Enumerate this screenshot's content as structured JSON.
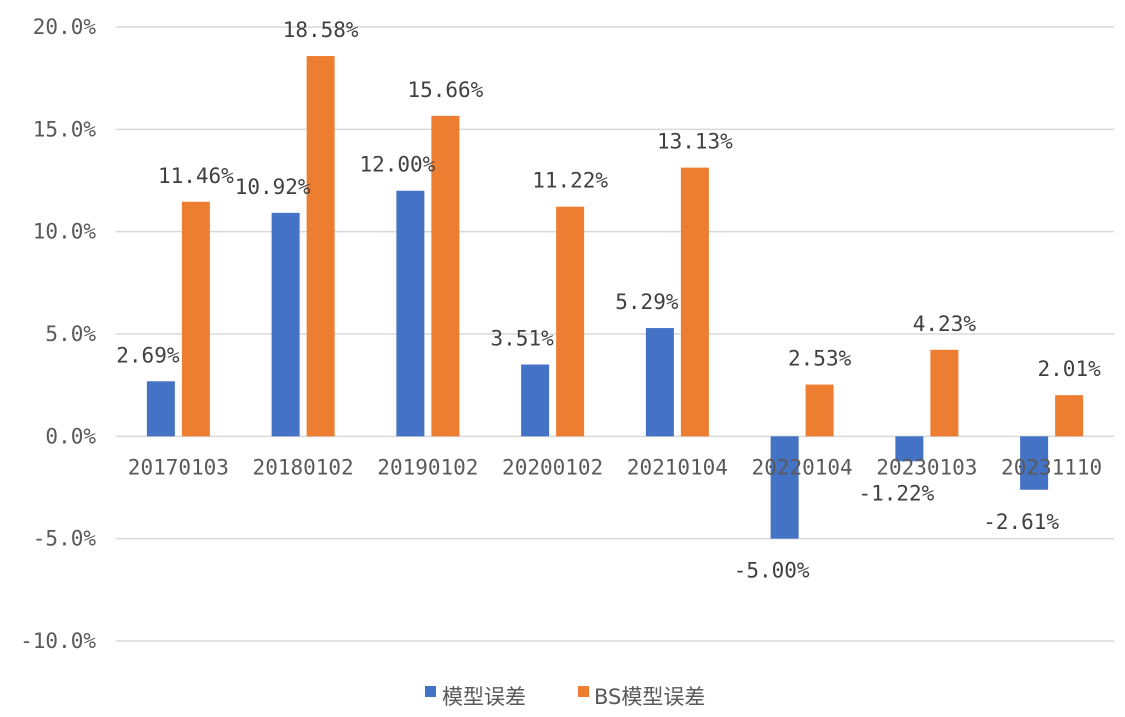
{
  "chart_data": {
    "type": "bar",
    "title": "",
    "xlabel": "",
    "ylabel": "",
    "categories": [
      "20170103",
      "20180102",
      "20190102",
      "20200102",
      "20210104",
      "20220104",
      "20230103",
      "20231110"
    ],
    "series": [
      {
        "name": "模型误差",
        "color": "#4472c4",
        "values": [
          2.69,
          10.92,
          12.0,
          3.51,
          5.29,
          -5.0,
          -1.22,
          -2.61
        ],
        "labels": [
          "2.69%",
          "10.92%",
          "12.00%",
          "3.51%",
          "5.29%",
          "-5.00%",
          "-1.22%",
          "-2.61%"
        ]
      },
      {
        "name": "BS模型误差",
        "color": "#ed7d31",
        "values": [
          11.46,
          18.58,
          15.66,
          11.22,
          13.13,
          2.53,
          4.23,
          2.01
        ],
        "labels": [
          "11.46%",
          "18.58%",
          "15.66%",
          "11.22%",
          "13.13%",
          "2.53%",
          "4.23%",
          "2.01%"
        ]
      }
    ],
    "ylim": [
      -10,
      20
    ],
    "yticks": [
      20,
      15,
      10,
      5,
      0,
      -5,
      -10
    ],
    "ytick_labels": [
      "20.0%",
      "15.0%",
      "10.0%",
      "5.0%",
      "0.0%",
      "-5.0%",
      "-10.0%"
    ],
    "grid": true,
    "legend_position": "bottom"
  }
}
